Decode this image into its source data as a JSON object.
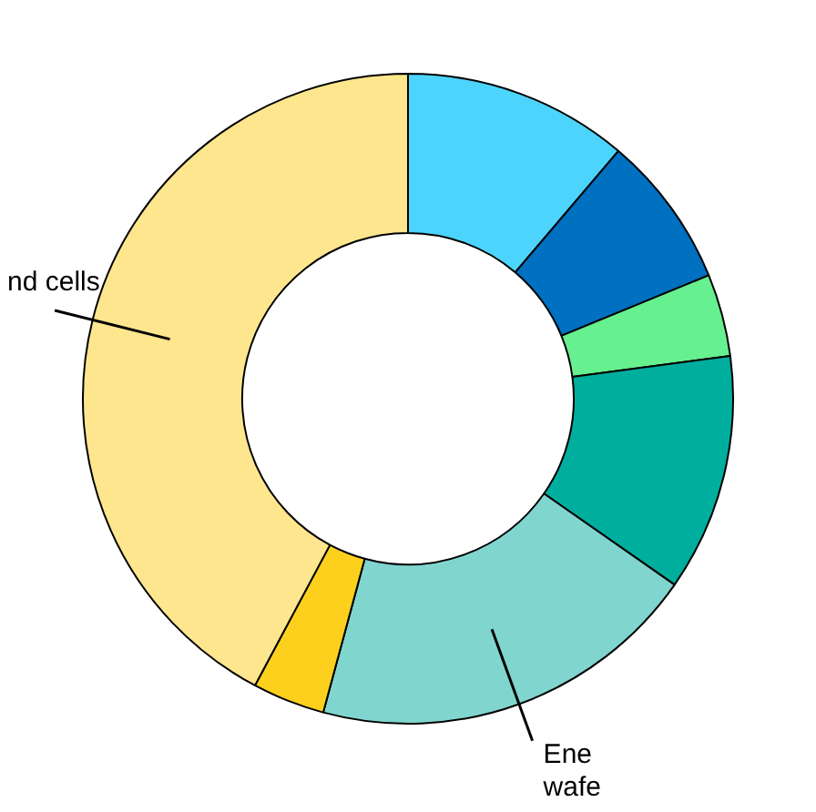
{
  "chart_data": {
    "type": "donut",
    "categories": [
      null,
      null,
      null,
      null,
      "Ene\nwafe",
      null,
      "nd cells"
    ],
    "values": [
      11.2,
      7.6,
      4.1,
      11.8,
      19.5,
      3.6,
      42.2
    ],
    "colors": [
      "#4dd4fc",
      "#0070c0",
      "#66f08f",
      "#00ae9e",
      "#80d6ce",
      "#fdd01e",
      "#fee68e"
    ],
    "legend": false
  }
}
